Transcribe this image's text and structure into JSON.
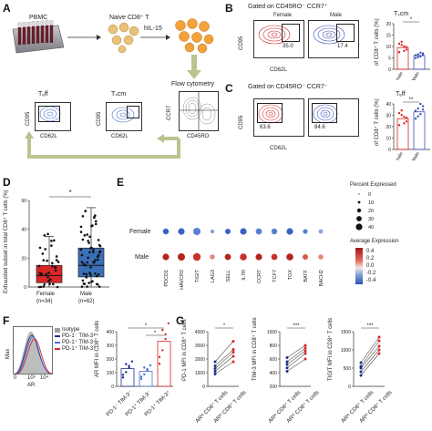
{
  "panel_letters": [
    "A",
    "B",
    "C",
    "D",
    "E",
    "F",
    "G"
  ],
  "A": {
    "pbmc": "PBMC",
    "naive": "Naive CD8⁺ T",
    "il15": "hIL-15",
    "flow": "Flow cytometry",
    "teff": "Tₑff",
    "tscm": "Tₛcm",
    "cd95": "CD95",
    "cd62l": "CD62L",
    "ccr7": "CCR7",
    "cd45ro": "CD45RO"
  },
  "B": {
    "title": "Gated on CD45RO⁻ CCR7⁺",
    "female": "Female",
    "male": "Male",
    "val_female": "35.0",
    "val_male": "17.4",
    "ylab": "CD95",
    "xlab": "CD62L",
    "chart_title": "Tₛcm",
    "chart_ylabel": "of CD8⁺ T cells (%)",
    "sig": "*",
    "yticks": [
      "20",
      "15",
      "10",
      "5",
      "0"
    ]
  },
  "C": {
    "title": "Gated on CD45RO⁻ CCR7⁻",
    "val_female": "63.6",
    "val_male": "84.6",
    "ylab": "CD95",
    "xlab": "CD62L",
    "chart_title": "Tₑff",
    "chart_ylabel": "of CD8⁺ T cells (%)",
    "sig": "**",
    "yticks": [
      "40",
      "30",
      "20",
      "10",
      "0"
    ]
  },
  "D": {
    "ylabel": "Exhausted subset in total CD8⁺ T cells (%)",
    "sig": "*",
    "female": "Female",
    "female_n": "(n=34)",
    "male": "Male",
    "male_n": "(n=62)",
    "yticks": [
      "60",
      "40",
      "20",
      "0"
    ]
  },
  "E": {
    "female": "Female",
    "male": "Male",
    "genes": [
      "PDCD1",
      "HAVCR2",
      "TIGIT",
      "LAG3",
      "SELL",
      "IL7R",
      "CCR7",
      "TCF7",
      "TOX",
      "BATF",
      "BACH2"
    ],
    "pct_title": "Percent Expressed",
    "pct_values": [
      "0",
      "10",
      "20",
      "30",
      "40"
    ],
    "avg_title": "Average Expression",
    "avg_values": [
      "0.4",
      "0.2",
      "0.0",
      "-0.2",
      "-0.4"
    ]
  },
  "F": {
    "legend": [
      "Isotype",
      "PD-1⁻ TIM-3⁻",
      "PD-1⁺ TIM-3⁻",
      "PD-1⁺ TIM-3⁺"
    ],
    "legend_colors": [
      "#9e9e9e",
      "#1f2c8c",
      "#4a6fd1",
      "#d62728"
    ],
    "ylab": "Max",
    "xlab": "AR",
    "xticks": [
      "0",
      "10³",
      "10⁴"
    ],
    "chart_ylabel": "AR MFI in CD8⁺ T cells",
    "cats": [
      "PD-1⁻ TIM-3⁻",
      "PD-1⁺ TIM-3⁻",
      "PD-1⁺ TIM-3⁺"
    ],
    "sig": [
      "*",
      "*"
    ],
    "yticks": [
      "400",
      "300",
      "200",
      "100",
      "0"
    ]
  },
  "G": {
    "plots": [
      {
        "ylabel": "PD-1 MFI in CD8⁺ T cells",
        "sig": "*",
        "yticks": [
          "4000",
          "3000",
          "2000",
          "1000",
          "0"
        ]
      },
      {
        "ylabel": "TIM-3 MFI in CD8⁺ T cells",
        "sig": "***",
        "yticks": [
          "1000",
          "800",
          "600",
          "400",
          "200"
        ]
      },
      {
        "ylabel": "TIGIT MFI in CD8⁺ T cells",
        "sig": "***",
        "yticks": [
          "1500",
          "1000",
          "500",
          "0"
        ]
      }
    ],
    "xcats": [
      "ARˡᵒ CD8⁺ T cells",
      "ARʰⁱ CD8⁺ T cells"
    ]
  },
  "chart_data": [
    {
      "type": "bar",
      "panel": "B",
      "categories": [
        "Female",
        "Male"
      ],
      "values": [
        9.5,
        6.0
      ],
      "ylim": [
        0,
        20
      ],
      "title": "Tscm",
      "ylabel": "of CD8+ T cells (%)"
    },
    {
      "type": "bar",
      "panel": "C",
      "categories": [
        "Female",
        "Male"
      ],
      "values": [
        27,
        33
      ],
      "ylim": [
        0,
        40
      ],
      "title": "Teff",
      "ylabel": "of CD8+ T cells (%)"
    },
    {
      "type": "box",
      "panel": "D",
      "categories": [
        "Female",
        "Male"
      ],
      "median": [
        8,
        15
      ],
      "q1": [
        3,
        7
      ],
      "q3": [
        15,
        27
      ],
      "whisker_low": [
        0,
        0
      ],
      "whisker_high": [
        35,
        55
      ],
      "ylim": [
        0,
        60
      ]
    },
    {
      "type": "bar",
      "panel": "F",
      "categories": [
        "PD-1- TIM-3-",
        "PD-1+ TIM-3-",
        "PD-1+ TIM-3+"
      ],
      "values": [
        130,
        110,
        330
      ],
      "ylim": [
        0,
        400
      ]
    },
    {
      "type": "line",
      "panel": "G1",
      "series": [
        {
          "low": 900,
          "high": 1800
        },
        {
          "low": 1100,
          "high": 2200
        },
        {
          "low": 1300,
          "high": 2500
        },
        {
          "low": 1500,
          "high": 2700
        },
        {
          "low": 1800,
          "high": 3300
        }
      ],
      "ylim": [
        0,
        4000
      ]
    },
    {
      "type": "line",
      "panel": "G2",
      "series": [
        {
          "low": 420,
          "high": 600
        },
        {
          "low": 470,
          "high": 680
        },
        {
          "low": 520,
          "high": 720
        },
        {
          "low": 560,
          "high": 760
        },
        {
          "low": 620,
          "high": 800
        }
      ],
      "ylim": [
        200,
        1000
      ]
    },
    {
      "type": "line",
      "panel": "G3",
      "series": [
        {
          "low": 300,
          "high": 900
        },
        {
          "low": 400,
          "high": 1000
        },
        {
          "low": 500,
          "high": 1100
        },
        {
          "low": 550,
          "high": 1250
        },
        {
          "low": 650,
          "high": 1350
        }
      ],
      "ylim": [
        0,
        1500
      ]
    }
  ]
}
